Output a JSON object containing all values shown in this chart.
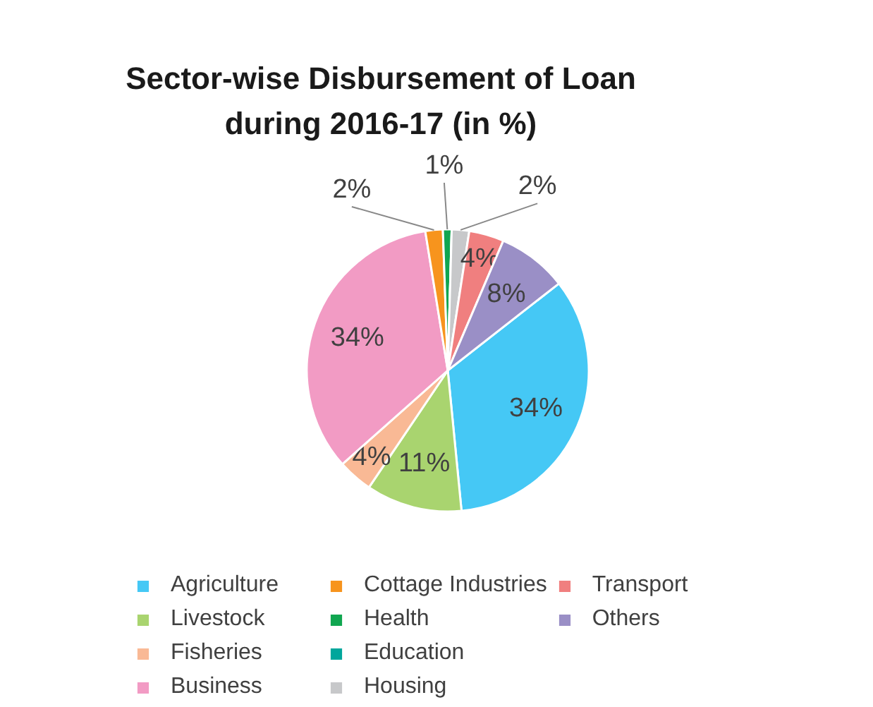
{
  "chart_data": {
    "type": "pie",
    "title": "Sector-wise Disbursement of Loan during 2016-17 (in %)",
    "categories": [
      "Agriculture",
      "Livestock",
      "Fisheries",
      "Business",
      "Cottage Industries",
      "Health",
      "Education",
      "Housing",
      "Transport",
      "Others"
    ],
    "values": [
      34,
      11,
      4,
      34,
      2,
      1,
      0,
      2,
      4,
      8
    ],
    "value_labels": [
      "34%",
      "11%",
      "4%",
      "34%",
      "2%",
      "1%",
      null,
      "2%",
      "4%",
      "8%"
    ],
    "colors": [
      "#45c8f5",
      "#a9d46f",
      "#f9b995",
      "#f29bc4",
      "#f7941d",
      "#10a650",
      "#00a69c",
      "#c7c8ca",
      "#f07f7f",
      "#9a8fc6"
    ],
    "legend": "bottom"
  }
}
